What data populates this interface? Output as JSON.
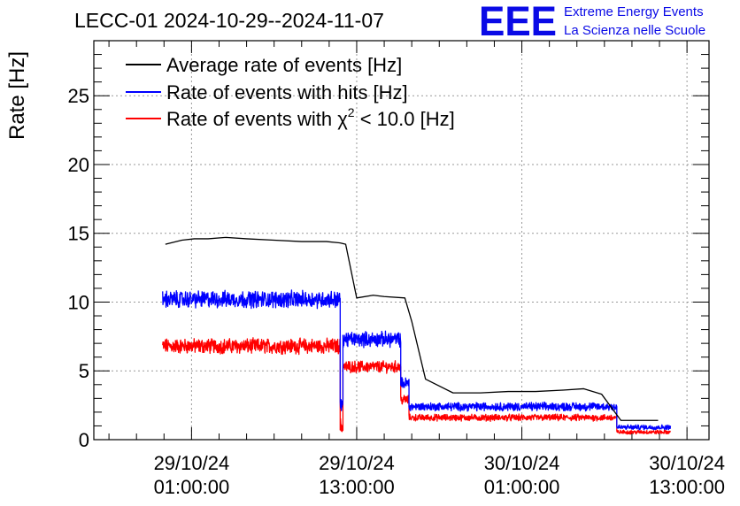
{
  "chart_data": {
    "type": "line",
    "title": "LECC-01 2024-10-29--2024-11-07",
    "ylabel": "Rate [Hz]",
    "xlabel": "",
    "ylim": [
      0,
      29
    ],
    "yticks": [
      0,
      5,
      10,
      15,
      20,
      25
    ],
    "x_unit": "hours since 29/10/24 01:00:00",
    "xlim": [
      -7.1,
      37.6
    ],
    "xticks": [
      {
        "x": 0,
        "label_date": "29/10/24",
        "label_time": "01:00:00"
      },
      {
        "x": 12,
        "label_date": "29/10/24",
        "label_time": "13:00:00"
      },
      {
        "x": 24,
        "label_date": "30/10/24",
        "label_time": "01:00:00"
      },
      {
        "x": 36,
        "label_date": "30/10/24",
        "label_time": "13:00:00"
      }
    ],
    "grid": true,
    "legend_position": "top-left",
    "legend": {
      "avg_label": "Average rate of events [Hz]",
      "hits_label": "Rate of events with hits [Hz]",
      "chi_label_prefix": "Rate of events with ",
      "chi_symbol": "χ",
      "chi_sup": "2",
      "chi_label_suffix": " < 10.0 [Hz]"
    },
    "series": [
      {
        "name": "Average rate of events [Hz]",
        "color": "#000000",
        "x": [
          -1.9,
          -0.7,
          0.2,
          1.2,
          2.5,
          4,
          6,
          8,
          9.8,
          10.8,
          11.2,
          12,
          13.2,
          14,
          15.5,
          16,
          17,
          19,
          21,
          23,
          25,
          27,
          28.5,
          29.8,
          31.2,
          32.6,
          33.9
        ],
        "y": [
          14.2,
          14.5,
          14.6,
          14.6,
          14.7,
          14.6,
          14.5,
          14.4,
          14.4,
          14.3,
          14.2,
          10.3,
          10.5,
          10.4,
          10.3,
          8.6,
          4.4,
          3.4,
          3.4,
          3.5,
          3.5,
          3.6,
          3.7,
          3.3,
          1.4,
          1.4,
          1.4
        ]
      },
      {
        "name": "Rate of events with hits [Hz]",
        "color": "#0000ff",
        "segments": [
          {
            "x0": -2.1,
            "x1": 10.8,
            "mean": 10.2,
            "amp": 0.5
          },
          {
            "x0": 10.8,
            "x1": 11.0,
            "mean": 2.5,
            "amp": 0.4
          },
          {
            "x0": 11.0,
            "x1": 15.2,
            "mean": 7.3,
            "amp": 0.45
          },
          {
            "x0": 15.2,
            "x1": 15.8,
            "mean": 4.1,
            "amp": 0.35
          },
          {
            "x0": 15.8,
            "x1": 30.9,
            "mean": 2.4,
            "amp": 0.25
          },
          {
            "x0": 30.9,
            "x1": 34.8,
            "mean": 0.9,
            "amp": 0.15
          }
        ]
      },
      {
        "name": "Rate of events with χ2 < 10.0 [Hz]",
        "color": "#ff0000",
        "segments": [
          {
            "x0": -2.1,
            "x1": 10.8,
            "mean": 6.8,
            "amp": 0.45
          },
          {
            "x0": 10.8,
            "x1": 11.0,
            "mean": 1.0,
            "amp": 0.5
          },
          {
            "x0": 11.0,
            "x1": 15.2,
            "mean": 5.3,
            "amp": 0.35
          },
          {
            "x0": 15.2,
            "x1": 15.8,
            "mean": 2.9,
            "amp": 0.3
          },
          {
            "x0": 15.8,
            "x1": 30.9,
            "mean": 1.6,
            "amp": 0.2
          },
          {
            "x0": 30.9,
            "x1": 34.8,
            "mean": 0.55,
            "amp": 0.12
          }
        ]
      }
    ]
  },
  "logo": {
    "text": "EEE",
    "line1": "Extreme Energy Events",
    "line2": "La Scienza nelle Scuole",
    "color": "#0a0ae6"
  }
}
